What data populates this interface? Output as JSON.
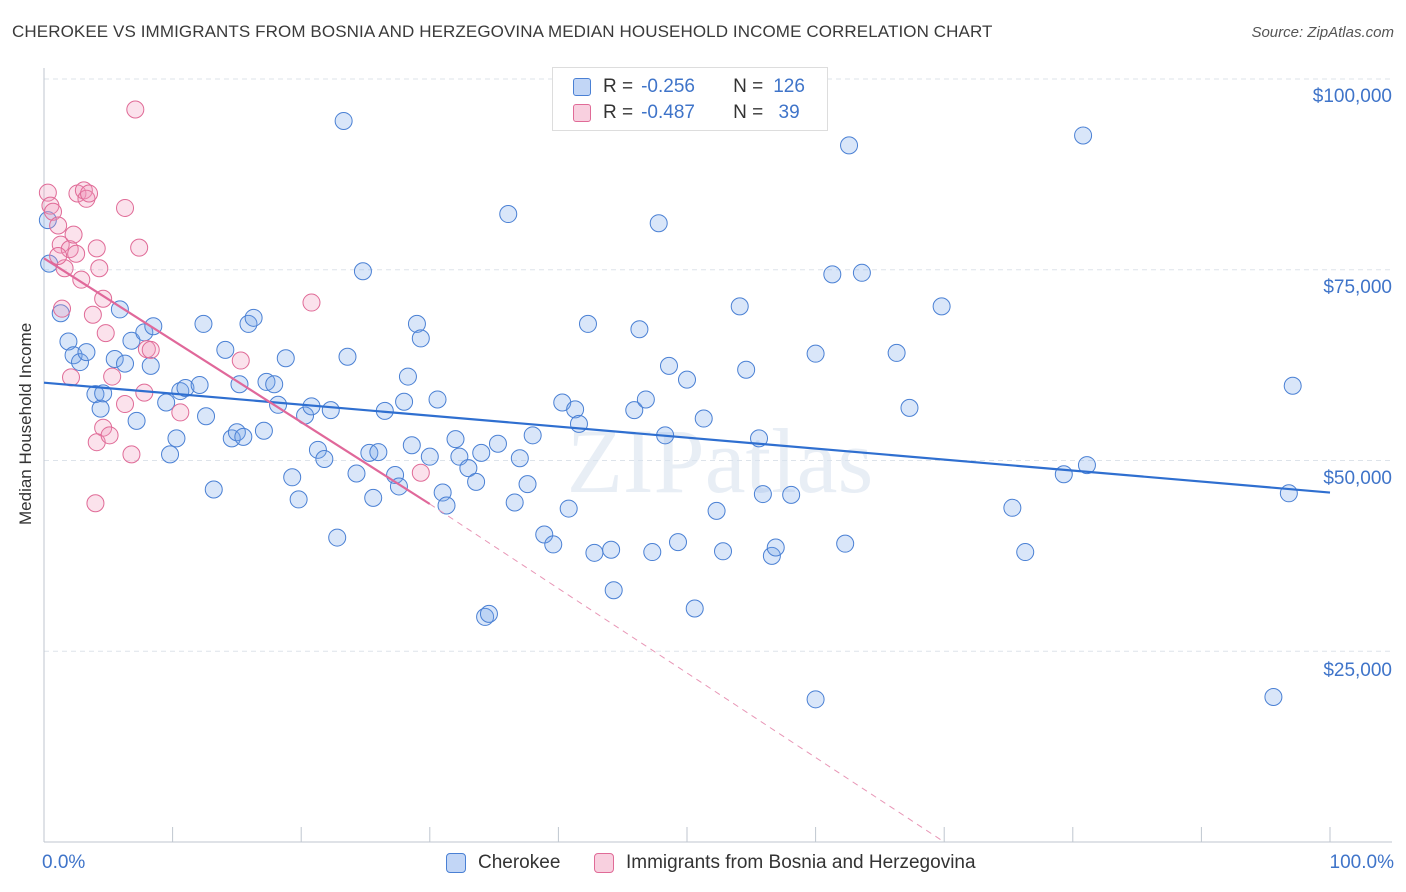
{
  "title": "CHEROKEE VS IMMIGRANTS FROM BOSNIA AND HERZEGOVINA MEDIAN HOUSEHOLD INCOME CORRELATION CHART",
  "source": "Source: ZipAtlas.com",
  "watermark": "ZIPatlas",
  "colors": {
    "blue": "#4a80d4",
    "blue_fill": "rgba(120,165,235,0.28)",
    "pink": "#e06b97",
    "pink_fill": "rgba(240,150,185,0.28)",
    "axis_text": "#3f74c9"
  },
  "legend": {
    "rows": [
      {
        "r_label": "R =",
        "r_value": "-0.256",
        "n_label": "N =",
        "n_value": "126"
      },
      {
        "r_label": "R =",
        "r_value": "-0.487",
        "n_label": "N =",
        "n_value": " 39"
      }
    ]
  },
  "bottom_legend": {
    "series1": "Cherokee",
    "series2": "Immigrants from Bosnia and Herzegovina"
  },
  "chart_data": {
    "type": "scatter",
    "title": "CHEROKEE VS IMMIGRANTS FROM BOSNIA AND HERZEGOVINA MEDIAN HOUSEHOLD INCOME CORRELATION CHART",
    "xlabel": "",
    "ylabel": "Median Household Income",
    "xlim": [
      0,
      100
    ],
    "ylim": [
      0,
      105000
    ],
    "x_tick_labels": [
      "0.0%",
      "100.0%"
    ],
    "y_ticks": [
      25000,
      50000,
      75000,
      100000
    ],
    "y_tick_labels": [
      "$25,000",
      "$50,000",
      "$75,000",
      "$100,000"
    ],
    "grid": true,
    "legend_position": "top-center",
    "series": [
      {
        "name": "Cherokee",
        "r": -0.256,
        "n": 126,
        "trend": {
          "x": [
            0,
            100
          ],
          "y": [
            60200,
            45800
          ]
        },
        "points": [
          [
            0.3,
            81500
          ],
          [
            0.4,
            75800
          ],
          [
            1.3,
            69300
          ],
          [
            1.9,
            65600
          ],
          [
            2.3,
            63800
          ],
          [
            2.8,
            62900
          ],
          [
            3.3,
            64200
          ],
          [
            4.0,
            58700
          ],
          [
            4.4,
            56800
          ],
          [
            4.6,
            58800
          ],
          [
            5.5,
            63300
          ],
          [
            5.9,
            69800
          ],
          [
            6.3,
            62700
          ],
          [
            6.8,
            65700
          ],
          [
            7.2,
            55200
          ],
          [
            7.8,
            66800
          ],
          [
            8.3,
            62400
          ],
          [
            8.5,
            67600
          ],
          [
            9.5,
            57600
          ],
          [
            9.8,
            50800
          ],
          [
            10.3,
            52900
          ],
          [
            10.6,
            59100
          ],
          [
            11.0,
            59500
          ],
          [
            12.1,
            59900
          ],
          [
            12.4,
            67900
          ],
          [
            12.6,
            55800
          ],
          [
            13.2,
            46200
          ],
          [
            14.1,
            64500
          ],
          [
            14.6,
            52900
          ],
          [
            15.0,
            53700
          ],
          [
            15.2,
            60000
          ],
          [
            15.5,
            53100
          ],
          [
            15.9,
            67900
          ],
          [
            16.3,
            68700
          ],
          [
            17.1,
            53900
          ],
          [
            17.3,
            60300
          ],
          [
            17.9,
            60000
          ],
          [
            18.2,
            57300
          ],
          [
            18.8,
            63400
          ],
          [
            19.3,
            47800
          ],
          [
            19.8,
            44900
          ],
          [
            20.3,
            55900
          ],
          [
            20.8,
            57100
          ],
          [
            21.3,
            51400
          ],
          [
            21.8,
            50200
          ],
          [
            22.3,
            56600
          ],
          [
            22.8,
            39900
          ],
          [
            23.3,
            94500
          ],
          [
            23.6,
            63600
          ],
          [
            24.3,
            48300
          ],
          [
            24.8,
            74800
          ],
          [
            25.3,
            51000
          ],
          [
            25.6,
            45100
          ],
          [
            26.0,
            51100
          ],
          [
            26.5,
            56500
          ],
          [
            27.3,
            48100
          ],
          [
            27.6,
            46600
          ],
          [
            28.0,
            57700
          ],
          [
            28.3,
            61000
          ],
          [
            28.6,
            52000
          ],
          [
            29.0,
            67900
          ],
          [
            29.3,
            66000
          ],
          [
            30.0,
            50500
          ],
          [
            30.6,
            58000
          ],
          [
            31.0,
            45800
          ],
          [
            31.3,
            44100
          ],
          [
            32.0,
            52800
          ],
          [
            32.3,
            50500
          ],
          [
            33.0,
            49000
          ],
          [
            33.6,
            47200
          ],
          [
            34.0,
            51000
          ],
          [
            34.3,
            29500
          ],
          [
            34.6,
            29900
          ],
          [
            35.3,
            52200
          ],
          [
            36.1,
            82300
          ],
          [
            36.6,
            44500
          ],
          [
            37.0,
            50300
          ],
          [
            37.6,
            46900
          ],
          [
            38.0,
            53300
          ],
          [
            38.9,
            40300
          ],
          [
            39.6,
            39000
          ],
          [
            40.3,
            57600
          ],
          [
            40.8,
            43700
          ],
          [
            41.3,
            56700
          ],
          [
            41.6,
            54800
          ],
          [
            42.3,
            67900
          ],
          [
            42.8,
            37900
          ],
          [
            44.1,
            38300
          ],
          [
            44.3,
            33000
          ],
          [
            45.9,
            56600
          ],
          [
            46.3,
            67200
          ],
          [
            46.8,
            58000
          ],
          [
            47.3,
            38000
          ],
          [
            47.8,
            81100
          ],
          [
            48.3,
            53300
          ],
          [
            48.6,
            62400
          ],
          [
            49.3,
            39300
          ],
          [
            50.0,
            60600
          ],
          [
            50.6,
            30600
          ],
          [
            51.3,
            55500
          ],
          [
            52.3,
            43400
          ],
          [
            52.8,
            38100
          ],
          [
            54.1,
            70200
          ],
          [
            54.6,
            61900
          ],
          [
            55.6,
            52900
          ],
          [
            55.9,
            45600
          ],
          [
            56.6,
            37500
          ],
          [
            56.9,
            38600
          ],
          [
            58.1,
            45500
          ],
          [
            60.0,
            64000
          ],
          [
            61.3,
            74400
          ],
          [
            62.3,
            39100
          ],
          [
            62.6,
            91300
          ],
          [
            63.6,
            74600
          ],
          [
            66.3,
            64100
          ],
          [
            67.3,
            56900
          ],
          [
            69.8,
            70200
          ],
          [
            75.3,
            43800
          ],
          [
            76.3,
            38000
          ],
          [
            79.3,
            48200
          ],
          [
            80.8,
            92600
          ],
          [
            81.1,
            49400
          ],
          [
            96.8,
            45700
          ],
          [
            97.1,
            59800
          ],
          [
            60.0,
            18700
          ],
          [
            95.6,
            19000
          ]
        ]
      },
      {
        "name": "Immigrants from Bosnia and Herzegovina",
        "r": -0.487,
        "n": 39,
        "trend": {
          "x": [
            0,
            30
          ],
          "y": [
            76500,
            44300
          ]
        },
        "trend_extension": {
          "x": [
            30,
            70
          ],
          "y": [
            44300,
            0
          ]
        },
        "points": [
          [
            0.3,
            85100
          ],
          [
            0.5,
            83400
          ],
          [
            0.7,
            82600
          ],
          [
            1.1,
            80800
          ],
          [
            1.3,
            78300
          ],
          [
            1.6,
            75200
          ],
          [
            2.0,
            77700
          ],
          [
            2.3,
            79600
          ],
          [
            2.5,
            77100
          ],
          [
            1.1,
            76800
          ],
          [
            2.6,
            85000
          ],
          [
            3.1,
            85400
          ],
          [
            3.3,
            84300
          ],
          [
            3.5,
            85000
          ],
          [
            4.1,
            77800
          ],
          [
            4.3,
            75200
          ],
          [
            4.6,
            71200
          ],
          [
            2.9,
            73700
          ],
          [
            3.8,
            69100
          ],
          [
            1.4,
            69900
          ],
          [
            4.8,
            66700
          ],
          [
            7.1,
            96000
          ],
          [
            8.0,
            64600
          ],
          [
            6.3,
            83100
          ],
          [
            7.4,
            77900
          ],
          [
            8.3,
            64500
          ],
          [
            2.1,
            60900
          ],
          [
            5.3,
            61000
          ],
          [
            6.3,
            57400
          ],
          [
            4.6,
            54300
          ],
          [
            6.8,
            50800
          ],
          [
            4.1,
            52400
          ],
          [
            7.8,
            58900
          ],
          [
            10.6,
            56300
          ],
          [
            5.1,
            53300
          ],
          [
            15.3,
            63100
          ],
          [
            20.8,
            70700
          ],
          [
            29.3,
            48400
          ],
          [
            4.0,
            44400
          ]
        ]
      }
    ]
  }
}
